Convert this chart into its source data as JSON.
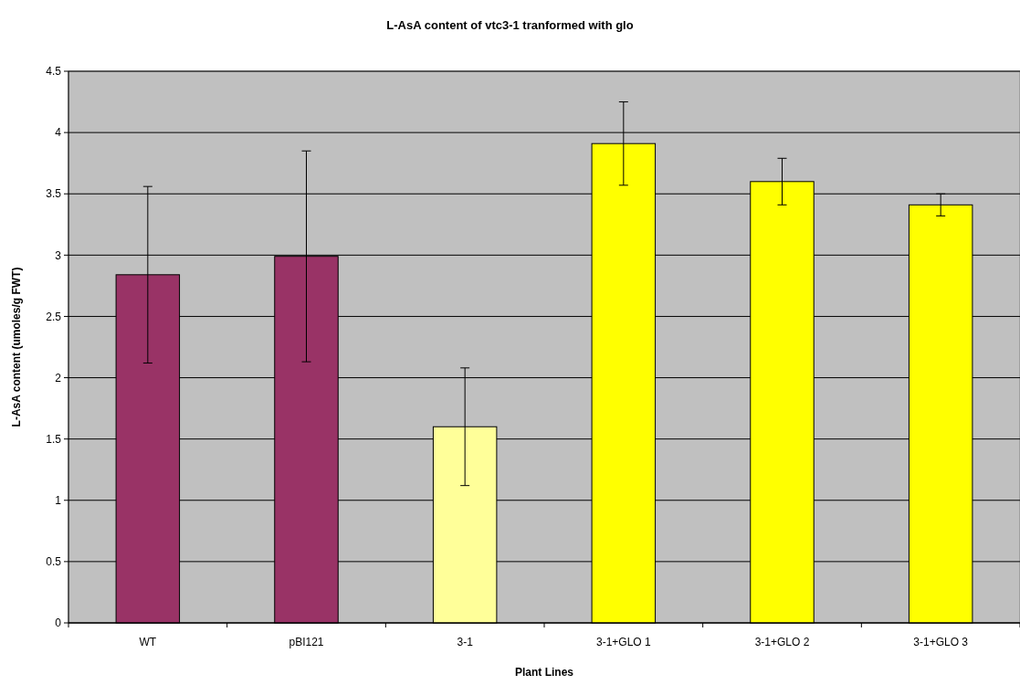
{
  "chart_data": {
    "type": "bar",
    "title": "L-AsA content of vtc3-1 tranformed with glo",
    "xlabel": "Plant Lines",
    "ylabel": "L-AsA content (umoles/g FWT)",
    "categories": [
      "WT",
      "pBI121",
      "3-1",
      "3-1+GLO 1",
      "3-1+GLO 2",
      "3-1+GLO 3"
    ],
    "values": [
      2.84,
      2.99,
      1.6,
      3.91,
      3.6,
      3.41
    ],
    "colors": [
      "#993366",
      "#993366",
      "#ffff99",
      "#ffff00",
      "#ffff00",
      "#ffff00"
    ],
    "errors": [
      0.72,
      0.86,
      0.48,
      0.34,
      0.19,
      0.09
    ],
    "ylim": [
      0,
      4.5
    ],
    "yticks": [
      0,
      0.5,
      1,
      1.5,
      2,
      2.5,
      3,
      3.5,
      4,
      4.5
    ],
    "grid": "y"
  }
}
